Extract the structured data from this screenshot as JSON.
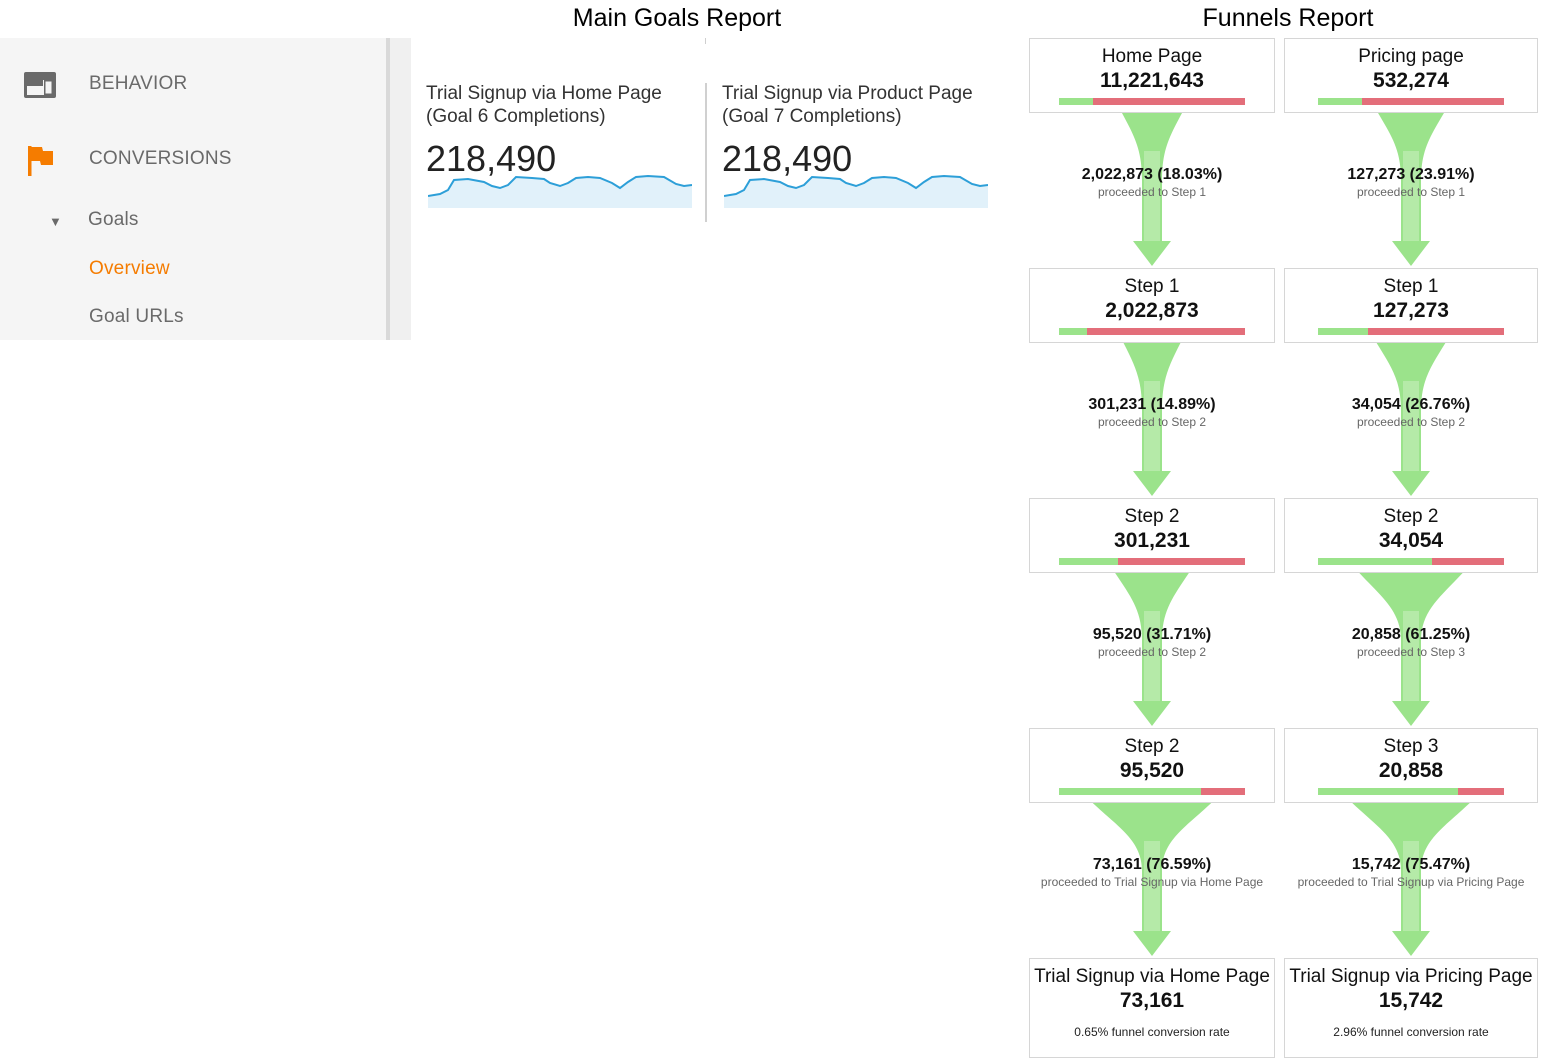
{
  "titles": {
    "goals": "Main Goals Report",
    "funnels": "Funnels Report"
  },
  "sidebar": {
    "behavior": {
      "label": "BEHAVIOR",
      "icon": "browser-window-icon"
    },
    "conversions": {
      "label": "CONVERSIONS",
      "icon": "flag-icon"
    },
    "goals": {
      "label": "Goals",
      "icon": "caret-down-icon"
    },
    "overview": {
      "label": "Overview"
    },
    "goal_urls": {
      "label": "Goal URLs"
    }
  },
  "goals": [
    {
      "name_line1": "Trial Signup via Home Page",
      "name_line2": "(Goal 6 Completions)",
      "value": "218,490"
    },
    {
      "name_line1": "Trial Signup via Product Page",
      "name_line2": "(Goal 7 Completions)",
      "value": "218,490"
    }
  ],
  "funnels": [
    {
      "steps": [
        {
          "label": "Home Page",
          "value": "11,221,643",
          "green_pct": 18.03
        },
        {
          "label": "Step 1",
          "value": "2,022,873",
          "green_pct": 14.89
        },
        {
          "label": "Step 2",
          "value": "301,231",
          "green_pct": 31.71
        },
        {
          "label": "Step 2",
          "value": "95,520",
          "green_pct": 76.59
        },
        {
          "label": "Trial Signup via Home Page",
          "value": "73,161",
          "note": "0.65% funnel conversion rate"
        }
      ],
      "connectors": [
        {
          "value": "2,022,873 (18.03%)",
          "label": "proceeded to Step 1",
          "pct": 18.03
        },
        {
          "value": "301,231 (14.89%)",
          "label": "proceeded to Step 2",
          "pct": 14.89
        },
        {
          "value": "95,520 (31.71%)",
          "label": "proceeded to Step 2",
          "pct": 31.71
        },
        {
          "value": "73,161 (76.59%)",
          "label": "proceeded to Trial Signup via Home Page",
          "pct": 76.59
        }
      ]
    },
    {
      "steps": [
        {
          "label": "Pricing page",
          "value": "532,274",
          "green_pct": 23.91
        },
        {
          "label": "Step 1",
          "value": "127,273",
          "green_pct": 26.76
        },
        {
          "label": "Step 2",
          "value": "34,054",
          "green_pct": 61.25
        },
        {
          "label": "Step 3",
          "value": "20,858",
          "green_pct": 75.47
        },
        {
          "label": "Trial Signup via Pricing Page",
          "value": "15,742",
          "note": "2.96% funnel conversion rate"
        }
      ],
      "connectors": [
        {
          "value": "127,273 (23.91%)",
          "label": "proceeded to Step 1",
          "pct": 23.91
        },
        {
          "value": "34,054 (26.76%)",
          "label": "proceeded to Step 2",
          "pct": 26.76
        },
        {
          "value": "20,858 (61.25%)",
          "label": "proceeded to Step 3",
          "pct": 61.25
        },
        {
          "value": "15,742 (75.47%)",
          "label": "proceeded to Trial Signup via Pricing Page",
          "pct": 75.47
        }
      ]
    }
  ],
  "colors": {
    "accent": "#f57c00",
    "bar_green": "#9be38b",
    "bar_red": "#e36e7a",
    "arrow_green": "#9be38b",
    "sparkline": "#2d9fd8"
  }
}
